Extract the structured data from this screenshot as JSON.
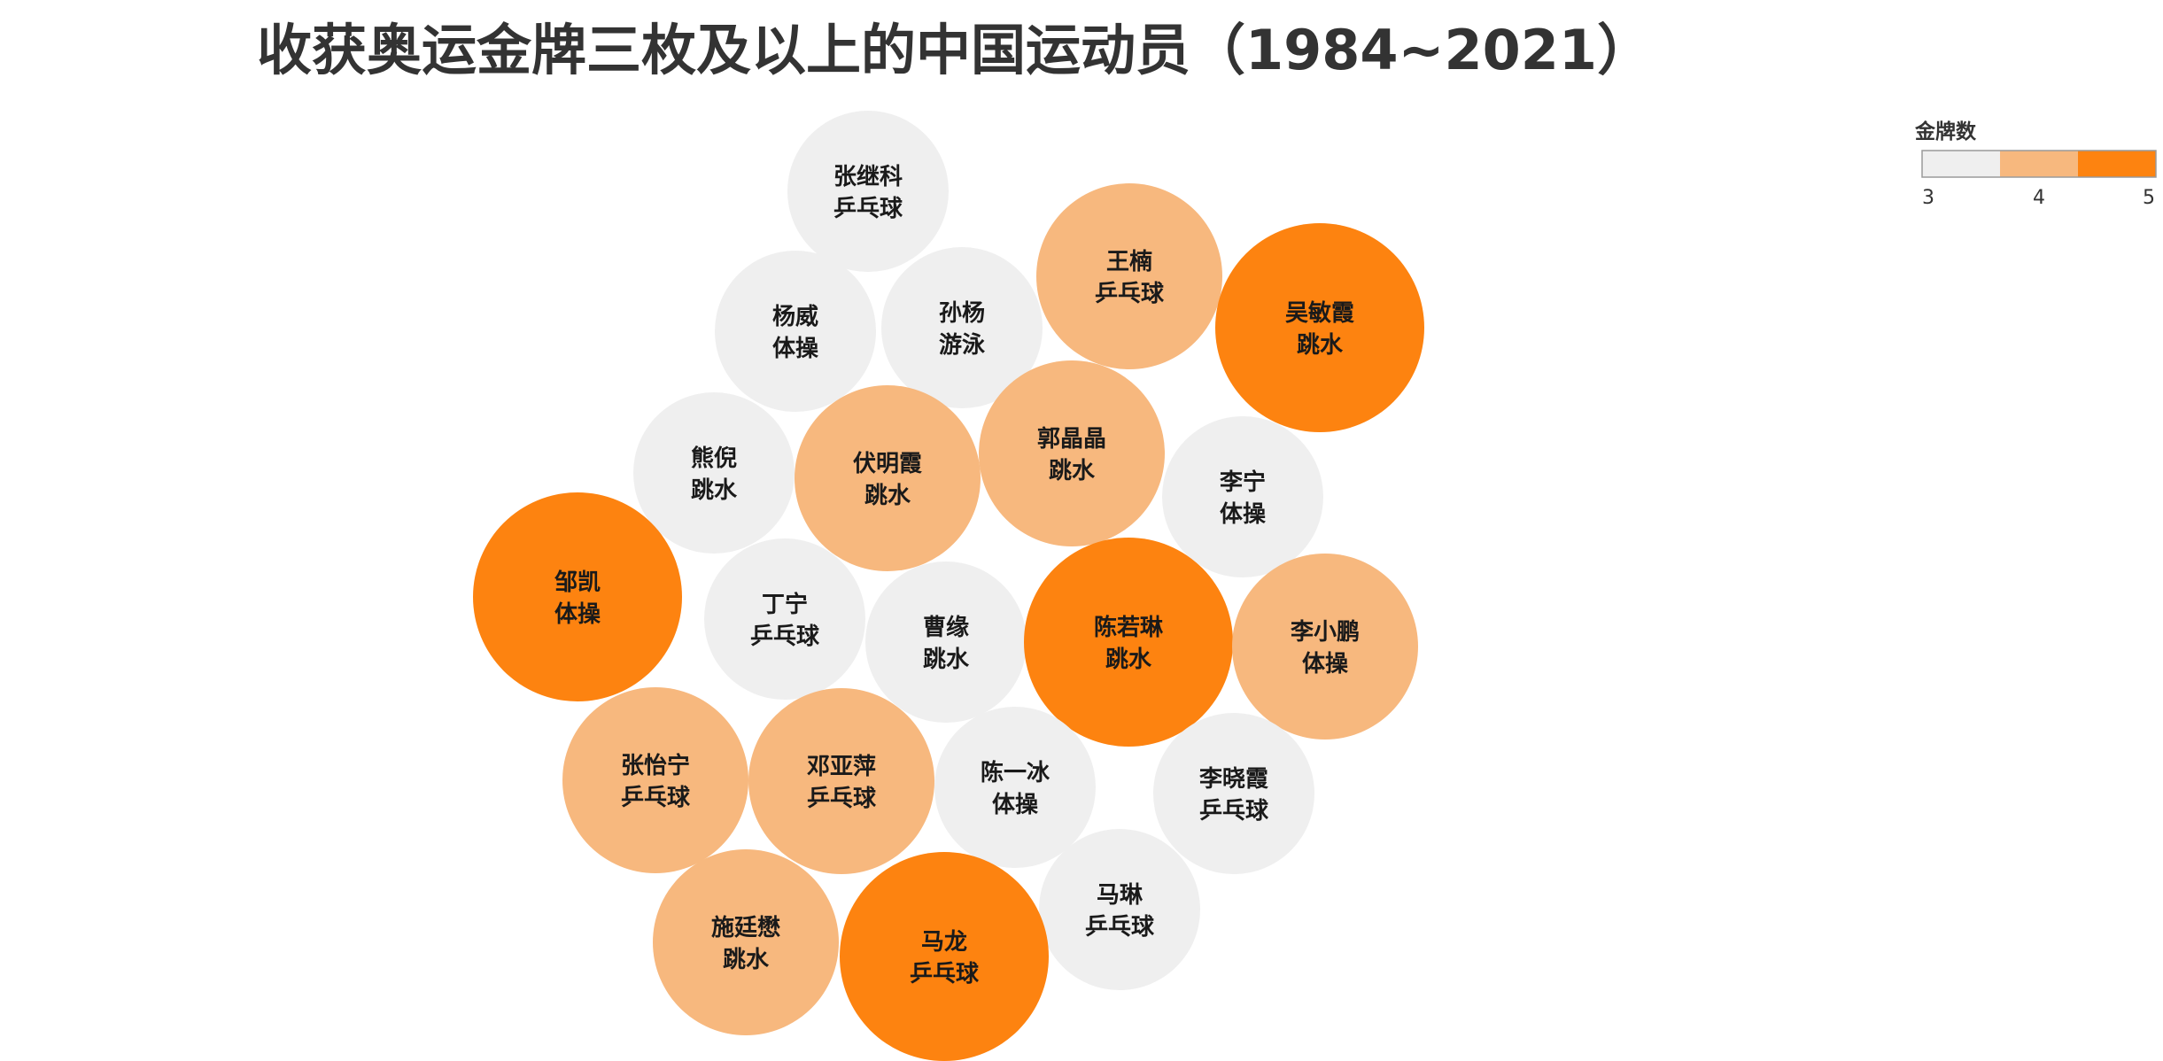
{
  "chart_data": {
    "type": "bubble",
    "title": "收获奥运金牌三枚及以上的中国运动员（1984~2021）",
    "legend": {
      "title": "金牌数",
      "placement": "top-right",
      "ticks": [
        "3",
        "4",
        "5"
      ],
      "colors": [
        "#efefef",
        "#f7b87e",
        "#fd8310"
      ]
    },
    "size_field": "金牌数",
    "color_field": "金牌数",
    "points": [
      {
        "name": "张继科",
        "sport": "乒乓球",
        "gold": 3
      },
      {
        "name": "杨威",
        "sport": "体操",
        "gold": 3
      },
      {
        "name": "孙杨",
        "sport": "游泳",
        "gold": 3
      },
      {
        "name": "王楠",
        "sport": "乒乓球",
        "gold": 4
      },
      {
        "name": "吴敏霞",
        "sport": "跳水",
        "gold": 5
      },
      {
        "name": "熊倪",
        "sport": "跳水",
        "gold": 3
      },
      {
        "name": "伏明霞",
        "sport": "跳水",
        "gold": 4
      },
      {
        "name": "郭晶晶",
        "sport": "跳水",
        "gold": 4
      },
      {
        "name": "李宁",
        "sport": "体操",
        "gold": 3
      },
      {
        "name": "邹凯",
        "sport": "体操",
        "gold": 5
      },
      {
        "name": "丁宁",
        "sport": "乒乓球",
        "gold": 3
      },
      {
        "name": "曹缘",
        "sport": "跳水",
        "gold": 3
      },
      {
        "name": "陈若琳",
        "sport": "跳水",
        "gold": 5
      },
      {
        "name": "李小鹏",
        "sport": "体操",
        "gold": 4
      },
      {
        "name": "张怡宁",
        "sport": "乒乓球",
        "gold": 4
      },
      {
        "name": "邓亚萍",
        "sport": "乒乓球",
        "gold": 4
      },
      {
        "name": "陈一冰",
        "sport": "体操",
        "gold": 3
      },
      {
        "name": "李晓霞",
        "sport": "乒乓球",
        "gold": 3
      },
      {
        "name": "马琳",
        "sport": "乒乓球",
        "gold": 3
      },
      {
        "name": "施廷懋",
        "sport": "跳水",
        "gold": 4
      },
      {
        "name": "马龙",
        "sport": "乒乓球",
        "gold": 5
      }
    ]
  }
}
